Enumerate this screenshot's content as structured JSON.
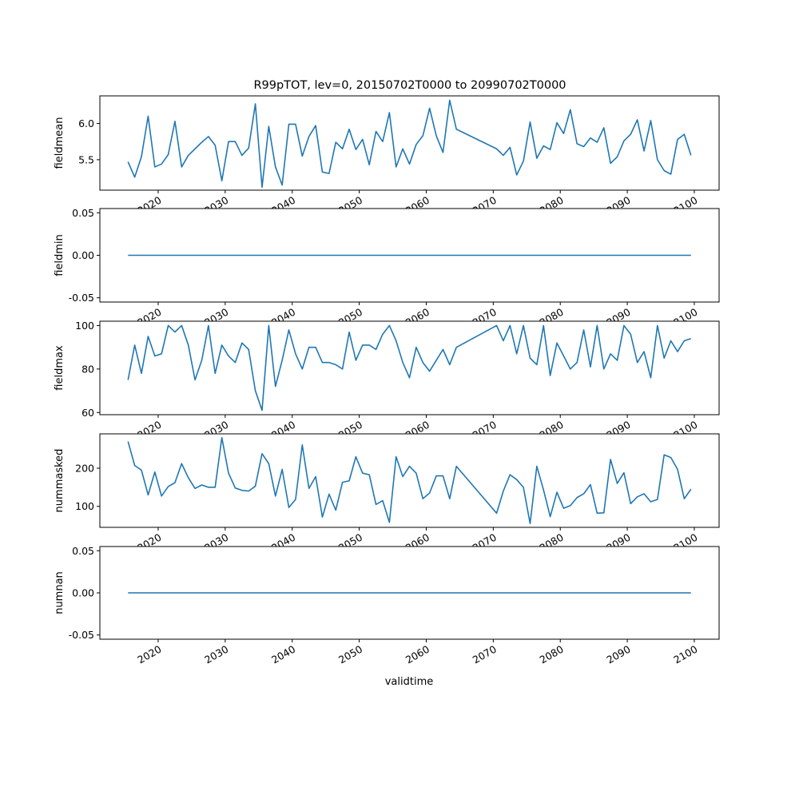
{
  "title": "R99pTOT, lev=0, 20150702T0000 to 20990702T0000",
  "xlabel": "validtime",
  "colors": {
    "line": "#1f77b4",
    "axes": "#000000",
    "background": "#ffffff"
  },
  "chart_data": {
    "type": "line",
    "title": "R99pTOT, lev=0, 20150702T0000 to 20990702T0000",
    "xlabel": "validtime",
    "shared_x": true,
    "grid": false,
    "legend": "none",
    "x": [
      2015.5,
      2016.5,
      2017.5,
      2018.5,
      2019.5,
      2020.5,
      2021.5,
      2022.5,
      2023.5,
      2024.5,
      2025.5,
      2026.5,
      2027.5,
      2028.5,
      2029.5,
      2030.5,
      2031.5,
      2032.5,
      2033.5,
      2034.5,
      2035.5,
      2036.5,
      2037.5,
      2038.5,
      2039.5,
      2040.5,
      2041.5,
      2042.5,
      2043.5,
      2044.5,
      2045.5,
      2046.5,
      2047.5,
      2048.5,
      2049.5,
      2050.5,
      2051.5,
      2052.5,
      2053.5,
      2054.5,
      2055.5,
      2056.5,
      2057.5,
      2058.5,
      2059.5,
      2060.5,
      2061.5,
      2062.5,
      2063.5,
      2064.5,
      2070.5,
      2071.5,
      2072.5,
      2073.5,
      2074.5,
      2075.5,
      2076.5,
      2077.5,
      2078.5,
      2079.5,
      2080.5,
      2081.5,
      2082.5,
      2083.5,
      2084.5,
      2085.5,
      2086.5,
      2087.5,
      2088.5,
      2089.5,
      2090.5,
      2091.5,
      2092.5,
      2093.5,
      2094.5,
      2095.5,
      2096.5,
      2097.5,
      2098.5,
      2099.5
    ],
    "xticks": [
      "2020",
      "2030",
      "2040",
      "2050",
      "2060",
      "2070",
      "2080",
      "2090",
      "2100"
    ],
    "panels": [
      {
        "ylabel": "fieldmean",
        "ylim": [
          5.08,
          6.38
        ],
        "yticks": [
          "5.5",
          "6.0"
        ],
        "ytick_values": [
          5.5,
          6.0
        ],
        "values": [
          5.47,
          5.26,
          5.54,
          6.1,
          5.4,
          5.44,
          5.57,
          6.03,
          5.4,
          5.56,
          5.65,
          5.74,
          5.82,
          5.7,
          5.21,
          5.75,
          5.75,
          5.56,
          5.66,
          6.27,
          5.12,
          5.96,
          5.4,
          5.15,
          5.99,
          5.99,
          5.55,
          5.82,
          5.97,
          5.33,
          5.31,
          5.74,
          5.65,
          5.92,
          5.64,
          5.78,
          5.43,
          5.89,
          5.75,
          6.15,
          5.4,
          5.65,
          5.44,
          5.71,
          5.83,
          6.21,
          5.83,
          5.6,
          6.32,
          5.92,
          5.65,
          5.56,
          5.67,
          5.29,
          5.48,
          6.02,
          5.52,
          5.69,
          5.64,
          6.01,
          5.86,
          6.19,
          5.72,
          5.68,
          5.8,
          5.74,
          5.94,
          5.45,
          5.54,
          5.76,
          5.85,
          6.05,
          5.62,
          6.04,
          5.5,
          5.35,
          5.3,
          5.78,
          5.85,
          5.56
        ]
      },
      {
        "ylabel": "fieldmin",
        "ylim": [
          -0.055,
          0.055
        ],
        "yticks": [
          "0.05",
          "0.00",
          "-0.05"
        ],
        "ytick_values": [
          0.05,
          0.0,
          -0.05
        ],
        "values": [
          0,
          0,
          0,
          0,
          0,
          0,
          0,
          0,
          0,
          0,
          0,
          0,
          0,
          0,
          0,
          0,
          0,
          0,
          0,
          0,
          0,
          0,
          0,
          0,
          0,
          0,
          0,
          0,
          0,
          0,
          0,
          0,
          0,
          0,
          0,
          0,
          0,
          0,
          0,
          0,
          0,
          0,
          0,
          0,
          0,
          0,
          0,
          0,
          0,
          0,
          0,
          0,
          0,
          0,
          0,
          0,
          0,
          0,
          0,
          0,
          0,
          0,
          0,
          0,
          0,
          0,
          0,
          0,
          0,
          0,
          0,
          0,
          0,
          0,
          0,
          0,
          0,
          0,
          0,
          0
        ]
      },
      {
        "ylabel": "fieldmax",
        "ylim": [
          59,
          102
        ],
        "yticks": [
          "60",
          "80",
          "100"
        ],
        "ytick_values": [
          60,
          80,
          100
        ],
        "values": [
          75,
          91,
          78,
          95,
          86,
          87,
          100,
          97,
          100,
          91,
          75,
          84,
          100,
          78,
          91,
          86,
          83,
          92,
          89,
          70,
          61,
          100,
          72,
          84,
          98,
          87,
          80,
          90,
          90,
          83,
          83,
          82,
          80,
          97,
          84,
          91,
          91,
          89,
          96,
          100,
          93,
          83,
          76,
          90,
          83,
          79,
          84,
          89,
          82,
          90,
          100,
          93,
          100,
          87,
          100,
          85,
          82,
          100,
          77,
          92,
          86,
          80,
          83,
          98,
          81,
          100,
          80,
          87,
          84,
          100,
          96,
          83,
          88,
          76,
          100,
          85,
          93,
          88,
          93,
          94
        ]
      },
      {
        "ylabel": "nummasked",
        "ylim": [
          45,
          290
        ],
        "yticks": [
          "100",
          "200"
        ],
        "ytick_values": [
          100,
          200
        ],
        "values": [
          270,
          207,
          195,
          130,
          190,
          127,
          152,
          162,
          212,
          175,
          147,
          156,
          150,
          150,
          280,
          187,
          148,
          142,
          140,
          153,
          238,
          212,
          127,
          197,
          97,
          118,
          261,
          147,
          178,
          72,
          132,
          90,
          163,
          167,
          230,
          187,
          183,
          105,
          115,
          58,
          230,
          178,
          205,
          187,
          120,
          135,
          180,
          180,
          120,
          205,
          82,
          140,
          183,
          170,
          150,
          55,
          205,
          143,
          73,
          137,
          95,
          102,
          123,
          133,
          157,
          82,
          83,
          223,
          160,
          188,
          107,
          125,
          133,
          112,
          118,
          235,
          228,
          197,
          120,
          145
        ]
      },
      {
        "ylabel": "numnan",
        "ylim": [
          -0.055,
          0.055
        ],
        "yticks": [
          "0.05",
          "0.00",
          "-0.05"
        ],
        "ytick_values": [
          0.05,
          0.0,
          -0.05
        ],
        "values": [
          0,
          0,
          0,
          0,
          0,
          0,
          0,
          0,
          0,
          0,
          0,
          0,
          0,
          0,
          0,
          0,
          0,
          0,
          0,
          0,
          0,
          0,
          0,
          0,
          0,
          0,
          0,
          0,
          0,
          0,
          0,
          0,
          0,
          0,
          0,
          0,
          0,
          0,
          0,
          0,
          0,
          0,
          0,
          0,
          0,
          0,
          0,
          0,
          0,
          0,
          0,
          0,
          0,
          0,
          0,
          0,
          0,
          0,
          0,
          0,
          0,
          0,
          0,
          0,
          0,
          0,
          0,
          0,
          0,
          0,
          0,
          0,
          0,
          0,
          0,
          0,
          0,
          0,
          0,
          0
        ]
      }
    ],
    "xlim": [
      2011.3,
      2103.7
    ],
    "xtick_values": [
      2020,
      2030,
      2040,
      2050,
      2060,
      2070,
      2080,
      2090,
      2100
    ]
  }
}
